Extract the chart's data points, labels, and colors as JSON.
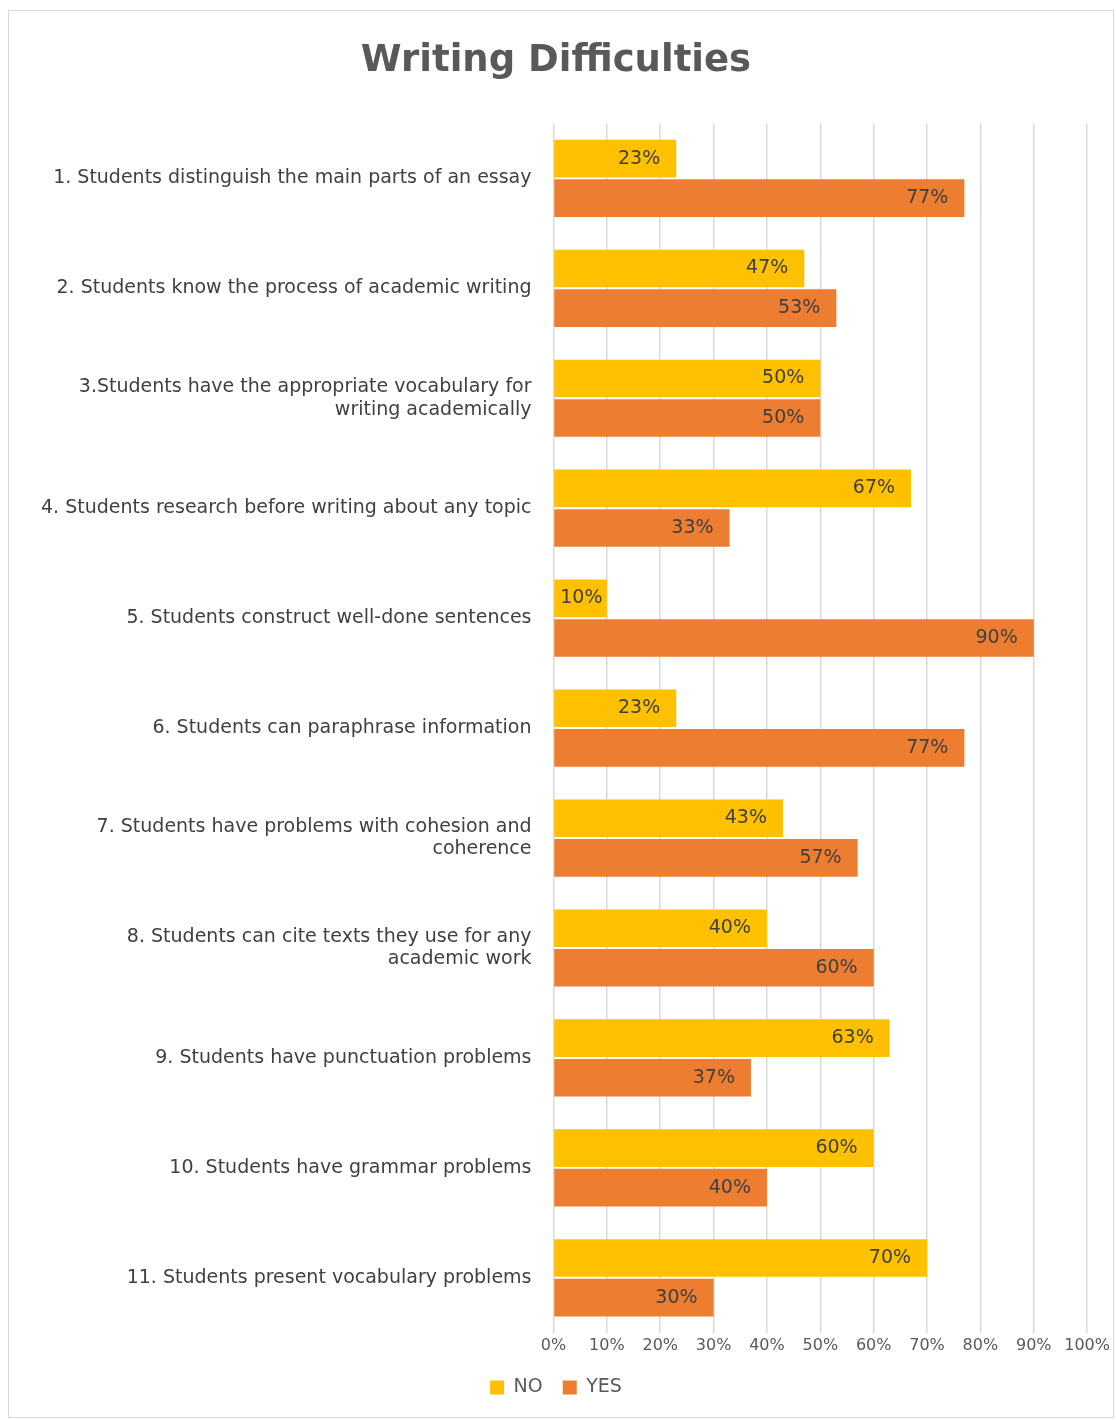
{
  "chart_data": {
    "type": "bar",
    "orientation": "horizontal",
    "title": "Writing Difficulties",
    "categories": [
      "1. Students distinguish the main parts of an essay",
      "2. Students know the process of academic writing",
      "3.Students have the appropriate vocabulary for writing academically",
      "4. Students research before writing about any topic",
      "5. Students construct well-done sentences",
      "6. Students can paraphrase information",
      "7. Students have problems with cohesion and coherence",
      "8. Students can cite texts they use for any academic work",
      "9. Students have punctuation problems",
      "10. Students have grammar problems",
      "11. Students present vocabulary problems"
    ],
    "series": [
      {
        "name": "NO",
        "color": "#ffc000",
        "values": [
          23,
          47,
          50,
          67,
          10,
          23,
          43,
          40,
          63,
          60,
          70
        ],
        "value_labels": [
          "23%",
          "47%",
          "50%",
          "67%",
          "10%",
          "23%",
          "43%",
          "40%",
          "63%",
          "60%",
          "70%"
        ]
      },
      {
        "name": "YES",
        "color": "#ed7d31",
        "values": [
          77,
          53,
          50,
          33,
          90,
          77,
          57,
          60,
          37,
          40,
          30
        ],
        "value_labels": [
          "77%",
          "53%",
          "50%",
          "33%",
          "90%",
          "77%",
          "57%",
          "60%",
          "37%",
          "40%",
          "30%"
        ]
      }
    ],
    "xlim": [
      0,
      100
    ],
    "xticks": [
      {
        "value": 0,
        "label": "0%"
      },
      {
        "value": 10,
        "label": "10%"
      },
      {
        "value": 20,
        "label": "20%"
      },
      {
        "value": 30,
        "label": "30%"
      },
      {
        "value": 40,
        "label": "40%"
      },
      {
        "value": 50,
        "label": "50%"
      },
      {
        "value": 60,
        "label": "60%"
      },
      {
        "value": 70,
        "label": "70%"
      },
      {
        "value": 80,
        "label": "80%"
      },
      {
        "value": 90,
        "label": "90%"
      },
      {
        "value": 100,
        "label": "100%"
      }
    ],
    "grid": "x",
    "legend": "bottom"
  }
}
